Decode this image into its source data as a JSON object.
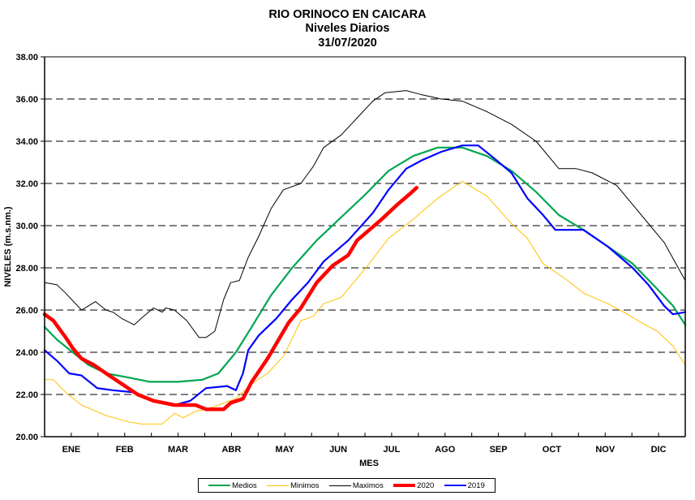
{
  "chart_data": {
    "type": "line",
    "title": "RIO ORINOCO EN CAICARA",
    "subtitle": "Niveles Diarios",
    "date": "31/07/2020",
    "xlabel": "MES",
    "ylabel": "NIVELES (m.s.nm.)",
    "ylim": [
      20,
      38
    ],
    "xlim": [
      0,
      365
    ],
    "yticks": [
      "20.00",
      "22.00",
      "24.00",
      "26.00",
      "28.00",
      "30.00",
      "32.00",
      "34.00",
      "36.00",
      "38.00"
    ],
    "ytick_values": [
      20,
      22,
      24,
      26,
      28,
      30,
      32,
      34,
      36,
      38
    ],
    "categories": [
      "ENE",
      "FEB",
      "MAR",
      "ABR",
      "MAY",
      "JUN",
      "JUL",
      "AGO",
      "SEP",
      "OCT",
      "NOV",
      "DIC"
    ],
    "grid": "horizontal-dashed",
    "legend_position": "bottom",
    "x_unit": "day of year",
    "series": [
      {
        "name": "Medios",
        "color": "#00a651",
        "points": [
          [
            0,
            25.2
          ],
          [
            7,
            24.6
          ],
          [
            16,
            24.0
          ],
          [
            25,
            23.4
          ],
          [
            35,
            23.0
          ],
          [
            48,
            22.8
          ],
          [
            60,
            22.6
          ],
          [
            76,
            22.6
          ],
          [
            90,
            22.7
          ],
          [
            99,
            23.0
          ],
          [
            109,
            24.0
          ],
          [
            118,
            25.2
          ],
          [
            129,
            26.7
          ],
          [
            141,
            28.0
          ],
          [
            155,
            29.3
          ],
          [
            169,
            30.4
          ],
          [
            183,
            31.5
          ],
          [
            196,
            32.6
          ],
          [
            210,
            33.3
          ],
          [
            224,
            33.7
          ],
          [
            238,
            33.7
          ],
          [
            252,
            33.3
          ],
          [
            266,
            32.6
          ],
          [
            280,
            31.6
          ],
          [
            293,
            30.5
          ],
          [
            307,
            29.8
          ],
          [
            321,
            29.0
          ],
          [
            335,
            28.2
          ],
          [
            349,
            27.0
          ],
          [
            358,
            26.2
          ],
          [
            365,
            25.3
          ]
        ]
      },
      {
        "name": "Minimos",
        "color": "#ffc000",
        "points": [
          [
            0,
            22.7
          ],
          [
            5,
            22.7
          ],
          [
            12,
            22.1
          ],
          [
            21,
            21.5
          ],
          [
            35,
            21.0
          ],
          [
            48,
            20.7
          ],
          [
            55,
            20.6
          ],
          [
            67,
            20.6
          ],
          [
            74,
            21.1
          ],
          [
            79,
            20.9
          ],
          [
            86,
            21.2
          ],
          [
            92,
            21.3
          ],
          [
            99,
            21.5
          ],
          [
            109,
            21.8
          ],
          [
            118,
            22.5
          ],
          [
            127,
            23.0
          ],
          [
            136,
            23.8
          ],
          [
            146,
            25.5
          ],
          [
            153,
            25.7
          ],
          [
            159,
            26.3
          ],
          [
            169,
            26.6
          ],
          [
            183,
            28.0
          ],
          [
            196,
            29.4
          ],
          [
            210,
            30.3
          ],
          [
            224,
            31.3
          ],
          [
            238,
            32.1
          ],
          [
            252,
            31.4
          ],
          [
            266,
            30.1
          ],
          [
            275,
            29.4
          ],
          [
            284,
            28.2
          ],
          [
            298,
            27.4
          ],
          [
            307,
            26.8
          ],
          [
            321,
            26.3
          ],
          [
            330,
            25.9
          ],
          [
            340,
            25.4
          ],
          [
            349,
            25.0
          ],
          [
            358,
            24.3
          ],
          [
            365,
            23.4
          ]
        ]
      },
      {
        "name": "Maximos",
        "color": "#000000",
        "points": [
          [
            0,
            27.3
          ],
          [
            7,
            27.2
          ],
          [
            12,
            26.8
          ],
          [
            21,
            26.0
          ],
          [
            25,
            26.2
          ],
          [
            29,
            26.4
          ],
          [
            35,
            26.0
          ],
          [
            39,
            25.9
          ],
          [
            44,
            25.6
          ],
          [
            51,
            25.3
          ],
          [
            55,
            25.6
          ],
          [
            62,
            26.1
          ],
          [
            67,
            25.9
          ],
          [
            69,
            26.1
          ],
          [
            74,
            26.0
          ],
          [
            81,
            25.5
          ],
          [
            88,
            24.7
          ],
          [
            92,
            24.7
          ],
          [
            97,
            25.0
          ],
          [
            102,
            26.5
          ],
          [
            106,
            27.3
          ],
          [
            111,
            27.4
          ],
          [
            116,
            28.5
          ],
          [
            122,
            29.5
          ],
          [
            129,
            30.8
          ],
          [
            136,
            31.7
          ],
          [
            146,
            32.0
          ],
          [
            153,
            32.8
          ],
          [
            159,
            33.7
          ],
          [
            169,
            34.3
          ],
          [
            178,
            35.1
          ],
          [
            187,
            35.9
          ],
          [
            194,
            36.3
          ],
          [
            206,
            36.4
          ],
          [
            215,
            36.2
          ],
          [
            226,
            36.0
          ],
          [
            238,
            35.9
          ],
          [
            252,
            35.4
          ],
          [
            266,
            34.8
          ],
          [
            280,
            34.0
          ],
          [
            293,
            32.7
          ],
          [
            303,
            32.7
          ],
          [
            312,
            32.5
          ],
          [
            326,
            31.9
          ],
          [
            340,
            30.5
          ],
          [
            353,
            29.2
          ],
          [
            365,
            27.4
          ]
        ]
      },
      {
        "name": "2020",
        "color": "#ff0000",
        "points": [
          [
            0,
            25.8
          ],
          [
            5,
            25.5
          ],
          [
            12,
            24.7
          ],
          [
            16,
            24.2
          ],
          [
            21,
            23.7
          ],
          [
            28,
            23.4
          ],
          [
            35,
            23.0
          ],
          [
            44,
            22.5
          ],
          [
            53,
            22.0
          ],
          [
            62,
            21.7
          ],
          [
            74,
            21.5
          ],
          [
            86,
            21.5
          ],
          [
            92,
            21.3
          ],
          [
            102,
            21.3
          ],
          [
            106,
            21.6
          ],
          [
            113,
            21.8
          ],
          [
            118,
            22.6
          ],
          [
            127,
            23.7
          ],
          [
            139,
            25.4
          ],
          [
            146,
            26.1
          ],
          [
            155,
            27.3
          ],
          [
            164,
            28.1
          ],
          [
            173,
            28.6
          ],
          [
            178,
            29.3
          ],
          [
            192,
            30.3
          ],
          [
            201,
            31.0
          ],
          [
            208,
            31.5
          ],
          [
            212,
            31.8
          ]
        ]
      },
      {
        "name": "2019",
        "color": "#0000ff",
        "points": [
          [
            0,
            24.1
          ],
          [
            7,
            23.6
          ],
          [
            14,
            23.0
          ],
          [
            21,
            22.9
          ],
          [
            30,
            22.3
          ],
          [
            39,
            22.2
          ],
          [
            51,
            22.1
          ],
          [
            60,
            21.8
          ],
          [
            67,
            21.6
          ],
          [
            74,
            21.5
          ],
          [
            83,
            21.7
          ],
          [
            92,
            22.3
          ],
          [
            104,
            22.4
          ],
          [
            109,
            22.2
          ],
          [
            113,
            23.0
          ],
          [
            116,
            24.1
          ],
          [
            122,
            24.8
          ],
          [
            132,
            25.6
          ],
          [
            141,
            26.5
          ],
          [
            150,
            27.3
          ],
          [
            159,
            28.3
          ],
          [
            173,
            29.3
          ],
          [
            187,
            30.6
          ],
          [
            196,
            31.7
          ],
          [
            206,
            32.7
          ],
          [
            215,
            33.1
          ],
          [
            226,
            33.5
          ],
          [
            238,
            33.8
          ],
          [
            247,
            33.8
          ],
          [
            256,
            33.2
          ],
          [
            266,
            32.5
          ],
          [
            275,
            31.3
          ],
          [
            284,
            30.5
          ],
          [
            291,
            29.8
          ],
          [
            307,
            29.8
          ],
          [
            321,
            29.0
          ],
          [
            335,
            28.0
          ],
          [
            344,
            27.2
          ],
          [
            353,
            26.2
          ],
          [
            358,
            25.8
          ],
          [
            365,
            25.9
          ]
        ]
      }
    ]
  }
}
